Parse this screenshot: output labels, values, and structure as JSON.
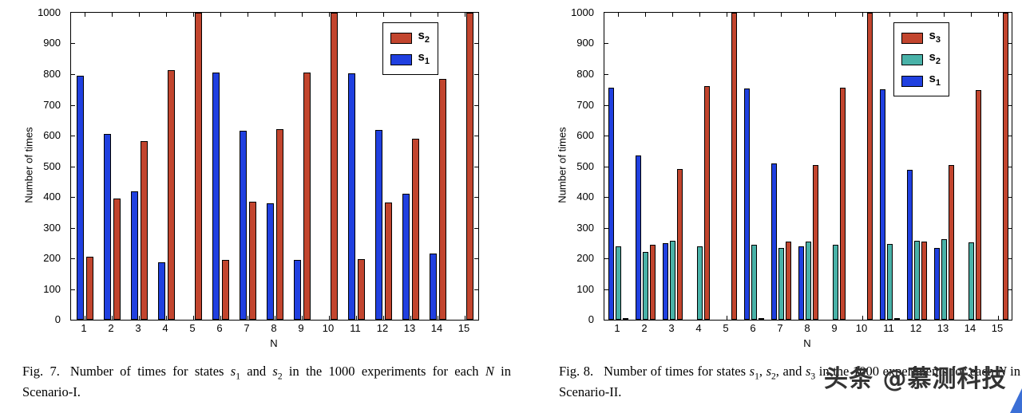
{
  "chart_data": [
    {
      "type": "bar",
      "title": "",
      "xlabel": "N",
      "ylabel": "Number of times",
      "ylim": [
        0,
        1000
      ],
      "yticks": [
        0,
        100,
        200,
        300,
        400,
        500,
        600,
        700,
        800,
        900,
        1000
      ],
      "categories": [
        "1",
        "2",
        "3",
        "4",
        "5",
        "6",
        "7",
        "8",
        "9",
        "10",
        "11",
        "12",
        "13",
        "14",
        "15"
      ],
      "grid": false,
      "legend_position": "top-right-inside",
      "series": [
        {
          "name": "s1",
          "label_base": "s",
          "label_sub": "1",
          "color": "#2040e0",
          "values": [
            795,
            605,
            418,
            188,
            0,
            805,
            615,
            378,
            195,
            0,
            803,
            618,
            410,
            215,
            0
          ]
        },
        {
          "name": "s2",
          "label_base": "s",
          "label_sub": "2",
          "color": "#c2452e",
          "values": [
            205,
            395,
            582,
            812,
            1000,
            195,
            385,
            622,
            805,
            1000,
            197,
            382,
            590,
            785,
            1000
          ]
        }
      ],
      "legend_order": [
        1,
        0
      ]
    },
    {
      "type": "bar",
      "title": "",
      "xlabel": "N",
      "ylabel": "Number of times",
      "ylim": [
        0,
        1000
      ],
      "yticks": [
        0,
        100,
        200,
        300,
        400,
        500,
        600,
        700,
        800,
        900,
        1000
      ],
      "categories": [
        "1",
        "2",
        "3",
        "4",
        "5",
        "6",
        "7",
        "8",
        "9",
        "10",
        "11",
        "12",
        "13",
        "14",
        "15"
      ],
      "grid": false,
      "legend_position": "top-right-inside",
      "series": [
        {
          "name": "s1",
          "label_base": "s",
          "label_sub": "1",
          "color": "#2040e0",
          "values": [
            757,
            535,
            250,
            0,
            0,
            752,
            510,
            240,
            0,
            0,
            750,
            488,
            235,
            0,
            0
          ]
        },
        {
          "name": "s2",
          "label_base": "s",
          "label_sub": "2",
          "color": "#49b2a8",
          "values": [
            240,
            220,
            258,
            240,
            0,
            243,
            235,
            255,
            243,
            0,
            248,
            258,
            262,
            252,
            0
          ]
        },
        {
          "name": "s3",
          "label_base": "s",
          "label_sub": "3",
          "color": "#c2452e",
          "values": [
            3,
            245,
            492,
            760,
            1000,
            5,
            255,
            505,
            757,
            1000,
            2,
            254,
            503,
            748,
            1000
          ]
        }
      ],
      "legend_order": [
        2,
        1,
        0
      ]
    }
  ],
  "captions": [
    {
      "fig_label": "Fig. 7.",
      "segments": [
        {
          "t": "Number of times for states "
        },
        {
          "t": "s",
          "i": true
        },
        {
          "t": "1",
          "sub": true
        },
        {
          "t": " and "
        },
        {
          "t": "s",
          "i": true
        },
        {
          "t": "2",
          "sub": true
        },
        {
          "t": " in the 1000 experiments for each "
        },
        {
          "t": "N",
          "i": true
        },
        {
          "t": " in Scenario-I."
        }
      ]
    },
    {
      "fig_label": "Fig. 8.",
      "segments": [
        {
          "t": "Number of times for states "
        },
        {
          "t": "s",
          "i": true
        },
        {
          "t": "1",
          "sub": true
        },
        {
          "t": ", "
        },
        {
          "t": "s",
          "i": true
        },
        {
          "t": "2",
          "sub": true
        },
        {
          "t": ", and "
        },
        {
          "t": "s",
          "i": true
        },
        {
          "t": "3",
          "sub": true
        },
        {
          "t": " in the 1000 experiments for each "
        },
        {
          "t": "N",
          "i": true
        },
        {
          "t": " in Scenario-II."
        }
      ]
    }
  ],
  "watermark": {
    "text": "头条 @慕测科技",
    "color": "#333333"
  },
  "accents": {
    "corner_triangle_blue": "#3b6fd6",
    "bar_red": "#c2452e",
    "bar_blue": "#2040e0",
    "bar_teal": "#49b2a8"
  }
}
